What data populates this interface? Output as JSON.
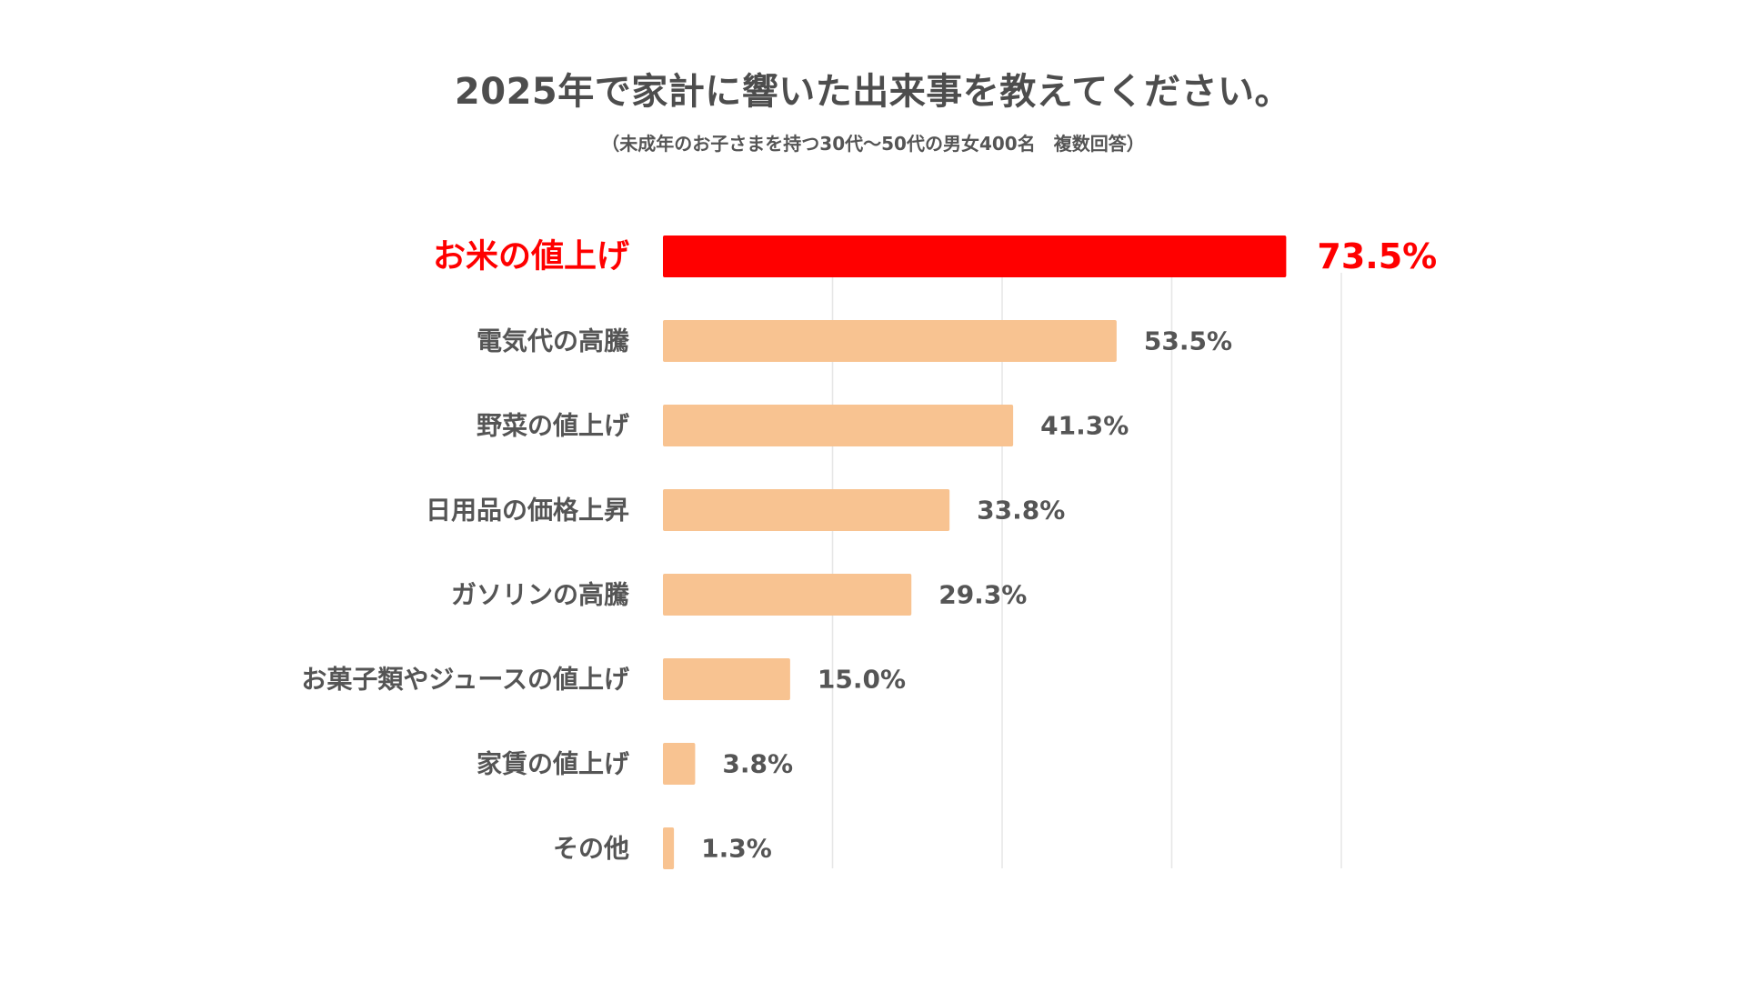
{
  "chart_data": {
    "type": "bar",
    "orientation": "horizontal",
    "title": "2025年で家計に響いた出来事を教えてください。",
    "subtitle": "（未成年のお子さまを持つ30代〜50代の男女400名　複数回答）",
    "categories": [
      "お米の値上げ",
      "電気代の高騰",
      "野菜の値上げ",
      "日用品の価格上昇",
      "ガソリンの高騰",
      "お菓子類やジュースの値上げ",
      "家賃の値上げ",
      "その他"
    ],
    "values": [
      73.5,
      53.5,
      41.3,
      33.8,
      29.3,
      15.0,
      3.8,
      1.3
    ],
    "value_labels": [
      "73.5%",
      "53.5%",
      "41.3%",
      "33.8%",
      "29.3%",
      "15.0%",
      "3.8%",
      "1.3%"
    ],
    "unit": "%",
    "xlim": [
      0,
      80
    ],
    "gridlines_at": [
      20,
      40,
      60,
      80
    ],
    "grid": true,
    "highlight_index": 0,
    "colors": {
      "highlight": "#ff0000",
      "bar": "#f8c391",
      "text": "#555555",
      "grid": "#e6e6e6"
    }
  }
}
